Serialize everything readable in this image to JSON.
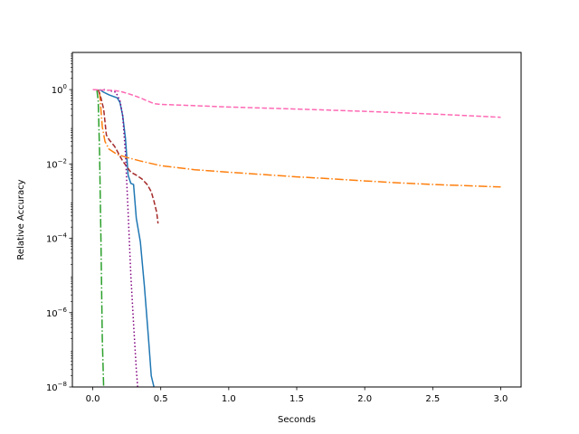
{
  "chart_data": {
    "type": "line",
    "title": "",
    "xlabel": "Seconds",
    "ylabel": "Relative Accuracy",
    "xlim": [
      -0.15,
      3.15
    ],
    "ylim": [
      1e-08,
      10
    ],
    "yscale": "log",
    "grid": false,
    "x_ticks": [
      0.0,
      0.5,
      1.0,
      1.5,
      2.0,
      2.5,
      3.0
    ],
    "x_tick_labels": [
      "0.0",
      "0.5",
      "1.0",
      "1.5",
      "2.0",
      "2.5",
      "3.0"
    ],
    "y_ticks": [
      1e-08,
      1e-06,
      0.0001,
      0.01,
      1
    ],
    "y_tick_labels": [
      {
        "base": "10",
        "exp": "−8"
      },
      {
        "base": "10",
        "exp": "−6"
      },
      {
        "base": "10",
        "exp": "−4"
      },
      {
        "base": "10",
        "exp": "−2"
      },
      {
        "base": "10",
        "exp": "0"
      }
    ],
    "series": [
      {
        "color": "#1f77b4",
        "dash": "solid",
        "x": [
          0.05,
          0.08,
          0.12,
          0.18,
          0.2,
          0.22,
          0.24,
          0.26,
          0.28,
          0.3,
          0.32,
          0.35,
          0.38,
          0.41,
          0.43,
          0.45
        ],
        "y": [
          1.0,
          0.85,
          0.72,
          0.6,
          0.45,
          0.2,
          0.05,
          0.005,
          0.003,
          0.0028,
          0.00035,
          8e-05,
          5e-06,
          2e-07,
          2e-08,
          1e-08
        ]
      },
      {
        "color": "#ff7f0e",
        "dash": "dashdot",
        "x": [
          0.05,
          0.07,
          0.09,
          0.12,
          0.18,
          0.25,
          0.35,
          0.5,
          0.75,
          1.0,
          1.25,
          1.5,
          1.75,
          2.0,
          2.25,
          2.5,
          2.75,
          3.0
        ],
        "y": [
          0.85,
          0.1,
          0.04,
          0.025,
          0.018,
          0.015,
          0.012,
          0.009,
          0.007,
          0.006,
          0.0052,
          0.0045,
          0.004,
          0.0035,
          0.0031,
          0.0028,
          0.0026,
          0.0024
        ]
      },
      {
        "color": "#2ca02c",
        "dash": "dashdot",
        "x": [
          0.03,
          0.04,
          0.05,
          0.06,
          0.07,
          0.08
        ],
        "y": [
          1.0,
          0.5,
          0.02,
          0.0001,
          2e-07,
          1e-08
        ]
      },
      {
        "color": "#a52a2a",
        "dash": "dashed",
        "x": [
          0.04,
          0.06,
          0.08,
          0.1,
          0.12,
          0.16,
          0.22,
          0.28,
          0.32,
          0.36,
          0.4,
          0.43,
          0.45,
          0.47,
          0.48
        ],
        "y": [
          1.0,
          0.6,
          0.3,
          0.06,
          0.045,
          0.03,
          0.012,
          0.006,
          0.005,
          0.004,
          0.0028,
          0.0018,
          0.001,
          0.0005,
          0.00025
        ]
      },
      {
        "color": "#800080",
        "dash": "dotted",
        "x": [
          0.08,
          0.12,
          0.17,
          0.2,
          0.22,
          0.24,
          0.26,
          0.28,
          0.3,
          0.32,
          0.33
        ],
        "y": [
          1.0,
          0.95,
          0.85,
          0.5,
          0.2,
          0.02,
          0.0005,
          1e-05,
          5e-07,
          3e-08,
          1e-08
        ]
      },
      {
        "color": "#ff69b4",
        "dash": "dashed",
        "x": [
          0.0,
          0.05,
          0.1,
          0.15,
          0.2,
          0.25,
          0.3,
          0.35,
          0.4,
          0.45,
          0.5,
          0.75,
          1.0,
          1.25,
          1.5,
          1.75,
          2.0,
          2.25,
          2.5,
          2.75,
          3.0
        ],
        "y": [
          1.0,
          0.98,
          0.97,
          0.95,
          0.9,
          0.8,
          0.7,
          0.6,
          0.5,
          0.42,
          0.4,
          0.37,
          0.34,
          0.32,
          0.3,
          0.28,
          0.26,
          0.24,
          0.22,
          0.2,
          0.18
        ]
      }
    ]
  }
}
